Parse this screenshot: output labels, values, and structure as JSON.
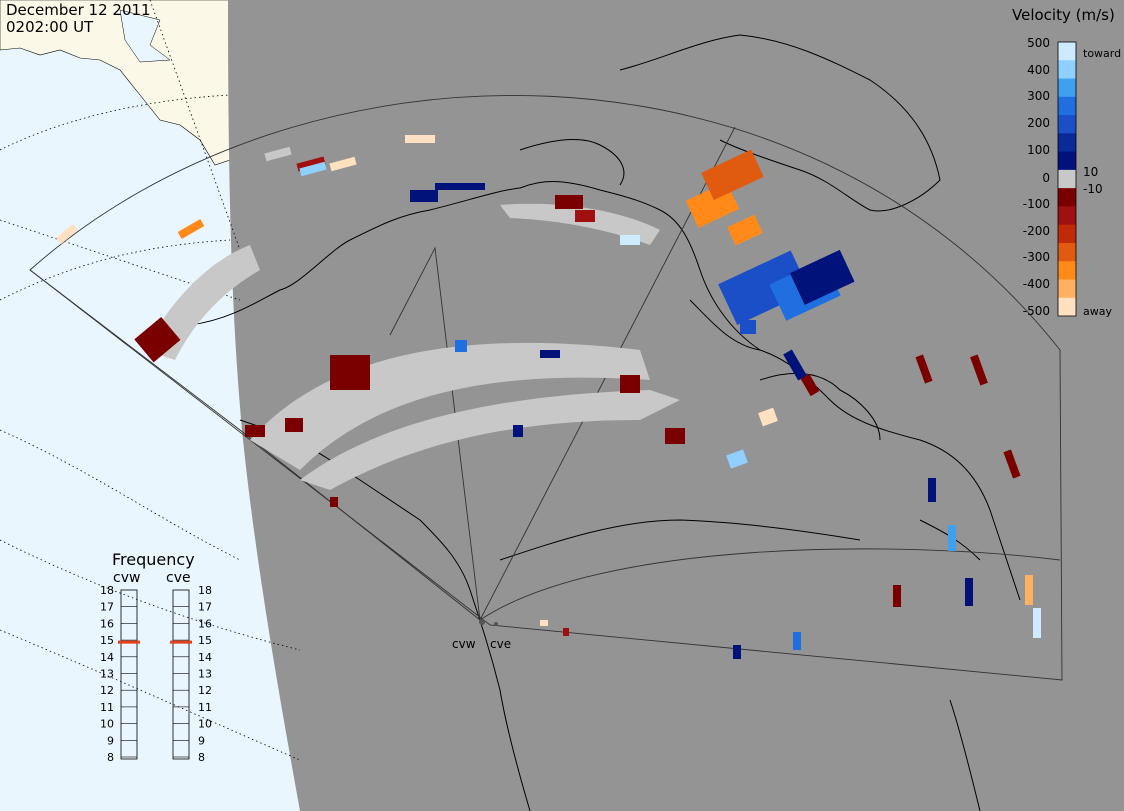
{
  "header": {
    "date": "December 12 2011",
    "time": "0202:00 UT"
  },
  "colorbar": {
    "title": "Velocity (m/s)",
    "tick_labels": [
      "500",
      "400",
      "300",
      "200",
      "100",
      "10",
      "0",
      "-10",
      "-100",
      "-200",
      "-300",
      "-400",
      "-500"
    ],
    "toward_label": "toward",
    "away_label": "away",
    "colors": [
      "#cdeaff",
      "#8fd0ff",
      "#3fa0f0",
      "#1f6fe0",
      "#1a4fc8",
      "#0a2a9a",
      "#01127a",
      "#c8c8c8",
      "#7a0000",
      "#a01010",
      "#c02a08",
      "#e05a10",
      "#ff8a1a",
      "#ffb060",
      "#ffe0c0"
    ]
  },
  "frequency": {
    "title": "Frequency",
    "left_label": "cvw",
    "right_label": "cve",
    "levels": [
      "18",
      "17",
      "16",
      "15",
      "14",
      "13",
      "12",
      "11",
      "10",
      "9",
      "8"
    ],
    "cvw_value_mhz": 15,
    "cve_value_mhz": 15
  },
  "radars": [
    {
      "name": "cvw"
    },
    {
      "name": "cve"
    }
  ],
  "colors": {
    "ocean": "#eaf6fd",
    "land_day": "#fbf8e8",
    "night": "#949494",
    "scatter_gray": "#c8c8c8"
  }
}
